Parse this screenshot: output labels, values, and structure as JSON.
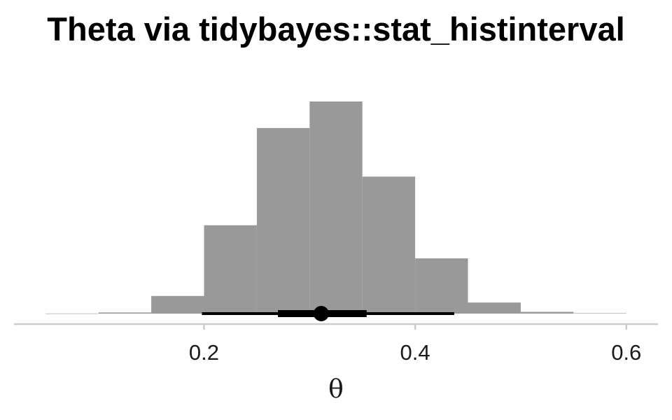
{
  "chart_data": {
    "type": "bar",
    "title": "Theta via tidybayes::stat_histinterval",
    "xlabel": "θ",
    "ylabel": "",
    "xlim": [
      0.02,
      0.63
    ],
    "x_ticks": [
      0.2,
      0.4,
      0.6
    ],
    "x_tick_labels": [
      "0.2",
      "0.4",
      "0.6"
    ],
    "y_axis_shown": false,
    "grid": false,
    "bin_width": 0.05,
    "bins": [
      {
        "start": 0.05,
        "end": 0.1,
        "density": 0.005
      },
      {
        "start": 0.1,
        "end": 0.15,
        "density": 0.05
      },
      {
        "start": 0.15,
        "end": 0.2,
        "density": 0.8
      },
      {
        "start": 0.2,
        "end": 0.25,
        "density": 4.0
      },
      {
        "start": 0.25,
        "end": 0.3,
        "density": 8.4
      },
      {
        "start": 0.3,
        "end": 0.35,
        "density": 9.6
      },
      {
        "start": 0.35,
        "end": 0.4,
        "density": 6.2
      },
      {
        "start": 0.4,
        "end": 0.45,
        "density": 2.5
      },
      {
        "start": 0.45,
        "end": 0.5,
        "density": 0.5
      },
      {
        "start": 0.5,
        "end": 0.55,
        "density": 0.08
      },
      {
        "start": 0.55,
        "end": 0.6,
        "density": 0.02
      }
    ],
    "point_estimate": 0.311,
    "intervals": [
      {
        "level": 0.66,
        "lower": 0.27,
        "upper": 0.354
      },
      {
        "level": 0.95,
        "lower": 0.198,
        "upper": 0.437
      }
    ],
    "colors": {
      "bar_fill": "#999999",
      "interval": "#000000",
      "point": "#000000",
      "axis_line": "#cccccc"
    }
  }
}
